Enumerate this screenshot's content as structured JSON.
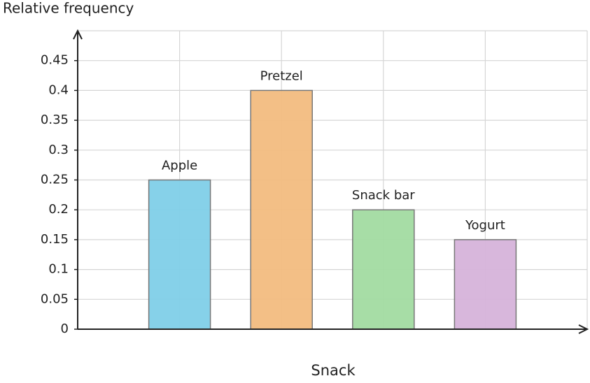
{
  "chart_data": {
    "type": "bar",
    "y_label": "Relative frequency",
    "x_label": "Snack",
    "categories": [
      "Apple",
      "Pretzel",
      "Snack bar",
      "Yogurt"
    ],
    "values": [
      0.25,
      0.4,
      0.2,
      0.15
    ],
    "colors": [
      "#7fcfe8",
      "#f2bc80",
      "#a2dba1",
      "#d6b3da"
    ],
    "ylim": [
      0,
      0.5
    ],
    "yticks": [
      0,
      0.05,
      0.1,
      0.15,
      0.2,
      0.25,
      0.3,
      0.35,
      0.4,
      0.45
    ],
    "grid": true
  }
}
